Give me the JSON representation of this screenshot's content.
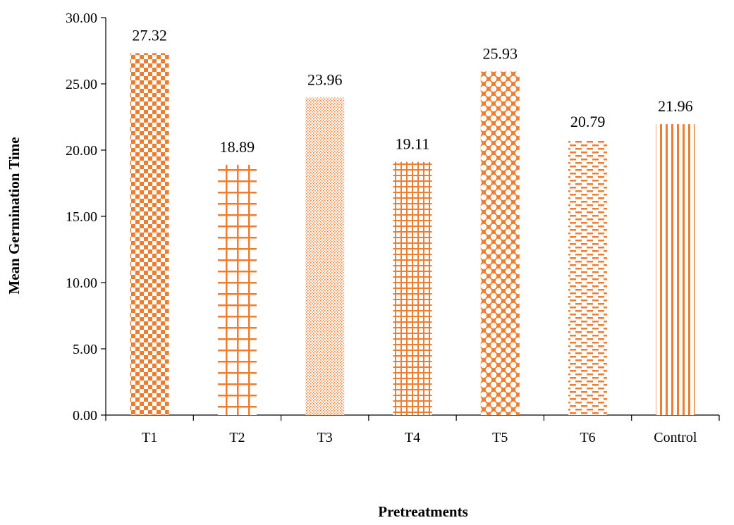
{
  "chart_data": {
    "type": "bar",
    "title": "",
    "xlabel": "Pretreatments",
    "ylabel": "Mean Germination Time",
    "categories": [
      "T1",
      "T2",
      "T3",
      "T4",
      "T5",
      "T6",
      "Control"
    ],
    "values": [
      27.32,
      18.89,
      23.96,
      19.11,
      25.93,
      20.79,
      21.96
    ],
    "value_labels": [
      "27.32",
      "18.89",
      "23.96",
      "19.11",
      "25.93",
      "20.79",
      "21.96"
    ],
    "ylim": [
      0,
      30
    ],
    "yticks": [
      0,
      5,
      10,
      15,
      20,
      25,
      30
    ],
    "ytick_labels": [
      "0.00",
      "5.00",
      "10.00",
      "15.00",
      "20.00",
      "25.00",
      "30.00"
    ],
    "grid": false,
    "legend": "none",
    "bar_patterns": [
      "checkerboard",
      "large-grid",
      "fine-dots",
      "small-grid",
      "dotted-diamond",
      "dashed-horizontal",
      "vertical-lines"
    ],
    "colors": {
      "bar": "#ED7D31",
      "axis": "#000000",
      "background": "#FFFFFF"
    }
  }
}
